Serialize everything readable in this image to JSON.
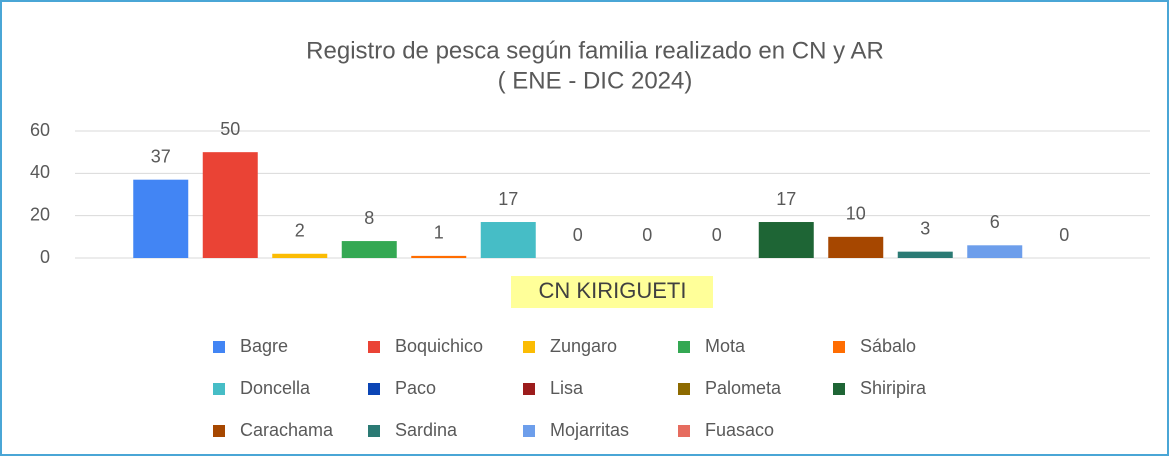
{
  "chart_data": {
    "type": "bar",
    "title": "Registro de pesca según familia realizado en CN y AR",
    "subtitle": "( ENE - DIC 2024)",
    "categories": [
      "CN KIRIGUETI"
    ],
    "series": [
      {
        "name": "Bagre",
        "color": "#4285f4",
        "values": [
          37
        ]
      },
      {
        "name": "Boquichico",
        "color": "#ea4335",
        "values": [
          50
        ]
      },
      {
        "name": "Zungaro",
        "color": "#fbbc04",
        "values": [
          2
        ]
      },
      {
        "name": "Mota",
        "color": "#34a853",
        "values": [
          8
        ]
      },
      {
        "name": "Sábalo",
        "color": "#ff6d01",
        "values": [
          1
        ]
      },
      {
        "name": "Doncella",
        "color": "#46bdc6",
        "values": [
          17
        ]
      },
      {
        "name": "Paco",
        "color": "#0b45b5",
        "values": [
          0
        ]
      },
      {
        "name": "Lisa",
        "color": "#9c1c1c",
        "values": [
          0
        ]
      },
      {
        "name": "Palometa",
        "color": "#8d6a00",
        "values": [
          0
        ]
      },
      {
        "name": "Shiripira",
        "color": "#1e6535",
        "values": [
          17
        ]
      },
      {
        "name": "Carachama",
        "color": "#a64700",
        "values": [
          10
        ]
      },
      {
        "name": "Sardina",
        "color": "#2b7a74",
        "values": [
          3
        ]
      },
      {
        "name": "Mojarritas",
        "color": "#6d9eeb",
        "values": [
          6
        ]
      },
      {
        "name": "Fuasaco",
        "color": "#e66c5f",
        "values": [
          0
        ]
      }
    ],
    "ylim": [
      0,
      60
    ],
    "yticks": [
      0,
      20,
      40,
      60
    ],
    "grid": true
  }
}
